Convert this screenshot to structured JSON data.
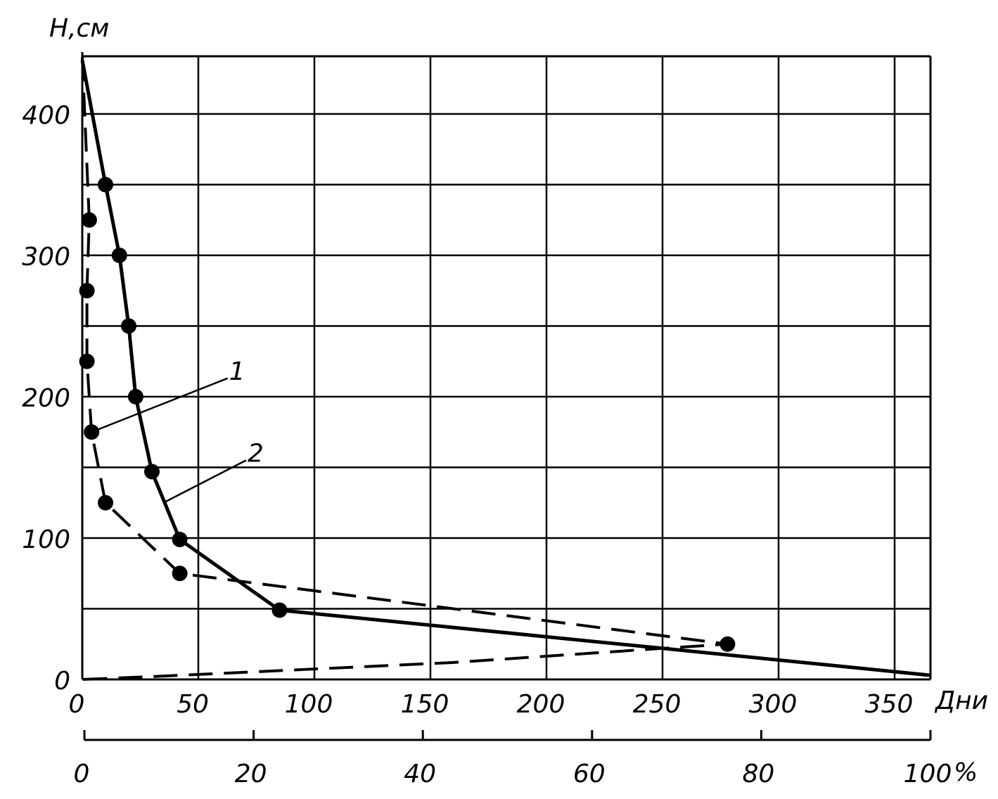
{
  "chart_data": {
    "type": "line",
    "ylabel": "H,см",
    "xlabel": "Дни",
    "x2label": "%",
    "xlim": [
      0,
      365
    ],
    "ylim": [
      0,
      438
    ],
    "x_grid_step": 50,
    "y_grid_step": 50,
    "x_ticks": [
      0,
      50,
      100,
      150,
      200,
      250,
      300,
      350
    ],
    "x_tick_labels": [
      "0",
      "50",
      "100",
      "150",
      "200",
      "250",
      "300",
      "350"
    ],
    "y_ticks": [
      0,
      100,
      200,
      300,
      400
    ],
    "y_tick_labels": [
      "0",
      "100",
      "200",
      "300",
      "400"
    ],
    "x2_ticks_percent": [
      0,
      20,
      40,
      60,
      80,
      100
    ],
    "x2_tick_labels": [
      "0",
      "20",
      "40",
      "60",
      "80",
      "100"
    ],
    "x2_tick_suffix": "%",
    "grid": true,
    "series": [
      {
        "name": "1",
        "style": "dashed",
        "line": [
          [
            0,
            440
          ],
          [
            3,
            325
          ],
          [
            2,
            275
          ],
          [
            2,
            225
          ],
          [
            4,
            175
          ],
          [
            10,
            125
          ],
          [
            42,
            75
          ],
          [
            278,
            25
          ],
          [
            250,
            22
          ],
          [
            160,
            12
          ],
          [
            30,
            2
          ],
          [
            0,
            0
          ]
        ],
        "markers": [
          [
            3,
            325
          ],
          [
            2,
            275
          ],
          [
            2,
            225
          ],
          [
            4,
            175
          ],
          [
            10,
            125
          ],
          [
            42,
            75
          ],
          [
            278,
            25
          ]
        ]
      },
      {
        "name": "2",
        "style": "solid",
        "line": [
          [
            0,
            438
          ],
          [
            10,
            350
          ],
          [
            16,
            300
          ],
          [
            20,
            250
          ],
          [
            23,
            200
          ],
          [
            30,
            147
          ],
          [
            42,
            99
          ],
          [
            85,
            49
          ],
          [
            250,
            22
          ],
          [
            365,
            3
          ]
        ],
        "markers": [
          [
            10,
            350
          ],
          [
            16,
            300
          ],
          [
            20,
            250
          ],
          [
            23,
            200
          ],
          [
            30,
            147
          ],
          [
            42,
            99
          ],
          [
            85,
            49
          ]
        ]
      }
    ],
    "callouts": [
      {
        "label": "1",
        "anchor": [
          4,
          175
        ],
        "text_at": [
          62,
          218
        ]
      },
      {
        "label": "2",
        "anchor": [
          35,
          125
        ],
        "text_at": [
          70,
          160
        ]
      }
    ],
    "colors": {
      "ink": "#000000",
      "background": "#ffffff"
    }
  }
}
